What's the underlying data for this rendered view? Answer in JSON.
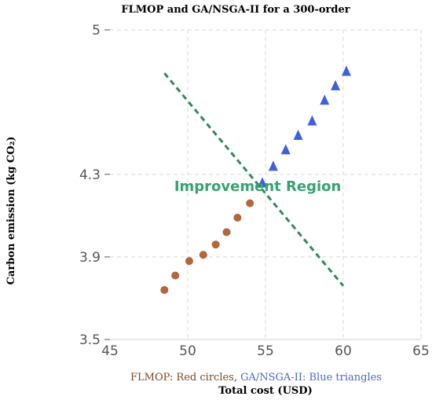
{
  "chart_data": {
    "type": "scatter",
    "title": "FLMOP and GA/NSGA-II for a 300-order",
    "xlabel": "Total cost (USD)",
    "ylabel": "Carbon emission (kg CO₂)",
    "xlim": [
      45,
      65
    ],
    "ylim": [
      3.5,
      5
    ],
    "x_ticks": [
      "45",
      "50",
      "55",
      "60",
      "65"
    ],
    "y_ticks": [
      {
        "value": 3.5,
        "label": "3.5"
      },
      {
        "value": 3.9,
        "label": "3.9"
      },
      {
        "value": 4.3,
        "label": "4.3"
      },
      {
        "value": 5.0,
        "label": "5"
      }
    ],
    "grid": true,
    "series": [
      {
        "name": "FLMOP: Red circles",
        "marker": "circle",
        "color": "#b5653a",
        "points": [
          [
            48.5,
            3.74
          ],
          [
            49.2,
            3.81
          ],
          [
            50.1,
            3.88
          ],
          [
            51.0,
            3.91
          ],
          [
            51.8,
            3.96
          ],
          [
            52.5,
            4.02
          ],
          [
            53.2,
            4.09
          ],
          [
            54.0,
            4.16
          ]
        ]
      },
      {
        "name": "GA/NSGA-II: Blue triangles",
        "marker": "triangle",
        "color": "#3f5fdc",
        "points": [
          [
            54.8,
            4.26
          ],
          [
            55.5,
            4.34
          ],
          [
            56.3,
            4.42
          ],
          [
            57.1,
            4.49
          ],
          [
            58.0,
            4.56
          ],
          [
            58.8,
            4.66
          ],
          [
            59.5,
            4.73
          ],
          [
            60.2,
            4.8
          ]
        ]
      }
    ],
    "trend_line": {
      "style": "dashed",
      "color": "#2f8a5a",
      "from": [
        48.5,
        4.79
      ],
      "to": [
        60.0,
        3.76
      ]
    },
    "annotation": {
      "text": "Improvement Region",
      "x": 54.5,
      "y": 4.22
    },
    "legend": {
      "placement": "bottom",
      "items": [
        {
          "text": "FLMOP: Red circles",
          "color": "#7a4a22"
        },
        {
          "text": ", ",
          "color": "#333333"
        },
        {
          "text": "GA/NSGA-II: Blue triangles",
          "color": "#4a68c8"
        }
      ]
    }
  }
}
